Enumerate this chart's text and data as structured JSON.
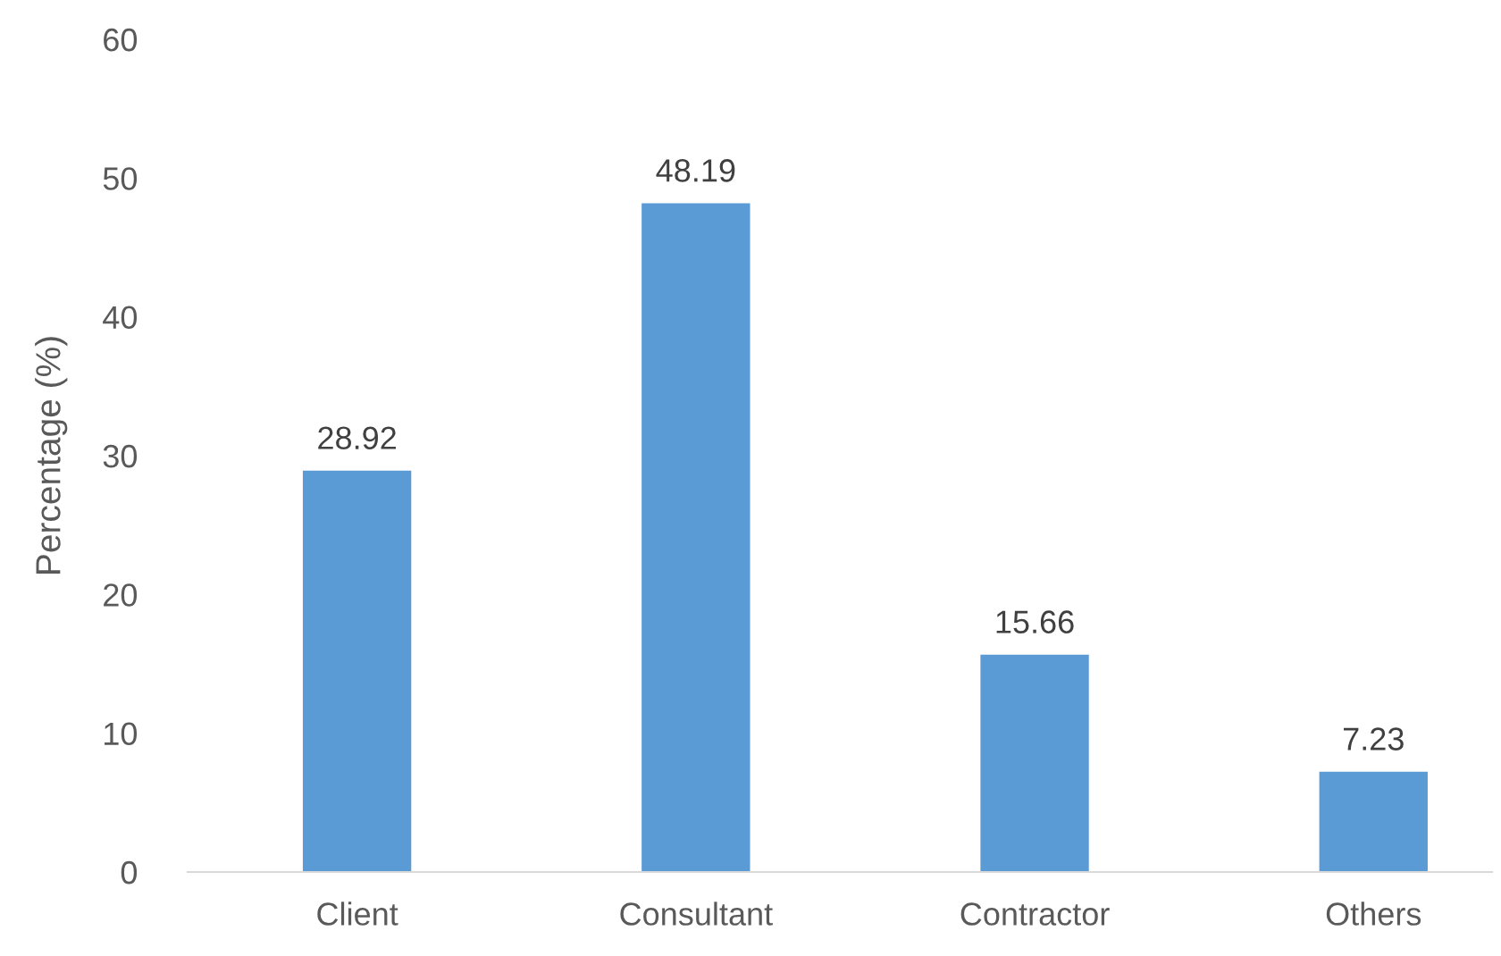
{
  "chart_data": {
    "type": "bar",
    "ylabel": "Percentage (%)",
    "categories": [
      "Client",
      "Consultant",
      "Contractor",
      "Others"
    ],
    "values": [
      28.92,
      48.19,
      15.66,
      7.23
    ],
    "color": "#5b9bd5",
    "ylim": [
      0,
      60
    ],
    "yticks": [
      0,
      10,
      20,
      30,
      40,
      50,
      60
    ],
    "grid": false,
    "data_labels": true
  }
}
